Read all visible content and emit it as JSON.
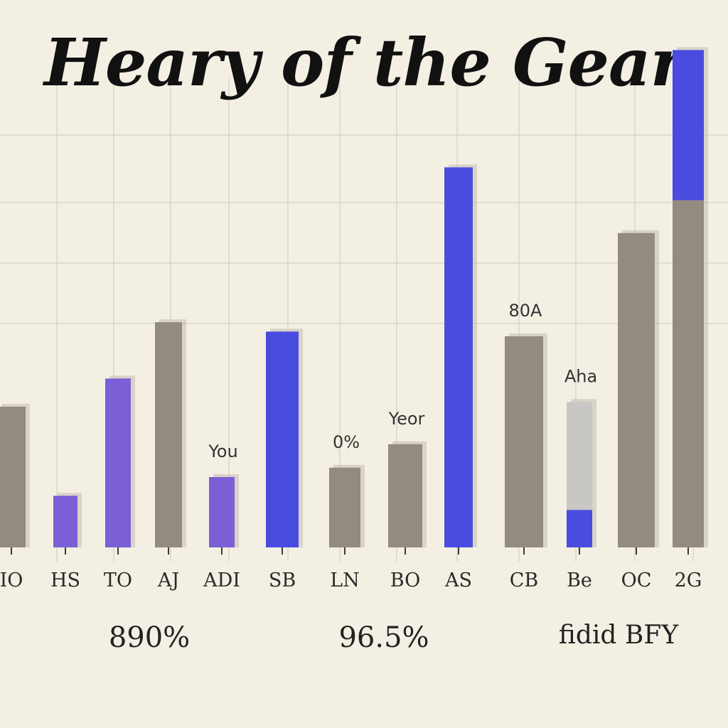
{
  "colors": {
    "background": "#f3f0e3",
    "grid": "#d9d6cc",
    "gray_bar": "#938a80",
    "gray_shadow": "#c2bcb2",
    "purple_bar": "#7b5fd6",
    "blue_bar": "#4a4ce0",
    "light_gray_bar": "#c9c7c3",
    "tick": "#3a3a3a"
  },
  "chart_data": {
    "type": "bar",
    "title": "Heary of the Gear",
    "xlabel": "",
    "ylabel": "",
    "ylim": [
      0,
      100
    ],
    "grid": true,
    "categories": [
      "IO",
      "HS",
      "TO",
      "AJ",
      "ADI",
      "SB",
      "LN",
      "BO",
      "AS",
      "CB",
      "Be",
      "OC",
      "2G"
    ],
    "series": [
      {
        "values": [
          30,
          0,
          0,
          48,
          0,
          0,
          17,
          22,
          0,
          45,
          0,
          67,
          74
        ]
      },
      {
        "values": [
          0,
          11,
          36,
          0,
          15,
          0,
          0,
          0,
          0,
          0,
          0,
          0,
          0
        ]
      },
      {
        "values": [
          0,
          0,
          0,
          0,
          0,
          46,
          0,
          0,
          81,
          0,
          8,
          0,
          32
        ]
      },
      {
        "values": [
          0,
          0,
          0,
          0,
          0,
          0,
          0,
          0,
          0,
          0,
          23,
          0,
          0
        ]
      }
    ],
    "data_labels": [
      {
        "category": "ADI",
        "text": "You"
      },
      {
        "category": "LN",
        "text": "0%"
      },
      {
        "category": "BO",
        "text": "Yeor"
      },
      {
        "category": "CB",
        "text": "80A"
      },
      {
        "category": "Be",
        "text": "Aha"
      }
    ]
  },
  "footer": {
    "left": "890%",
    "middle": "96.5%",
    "right": "fidid BFY"
  }
}
